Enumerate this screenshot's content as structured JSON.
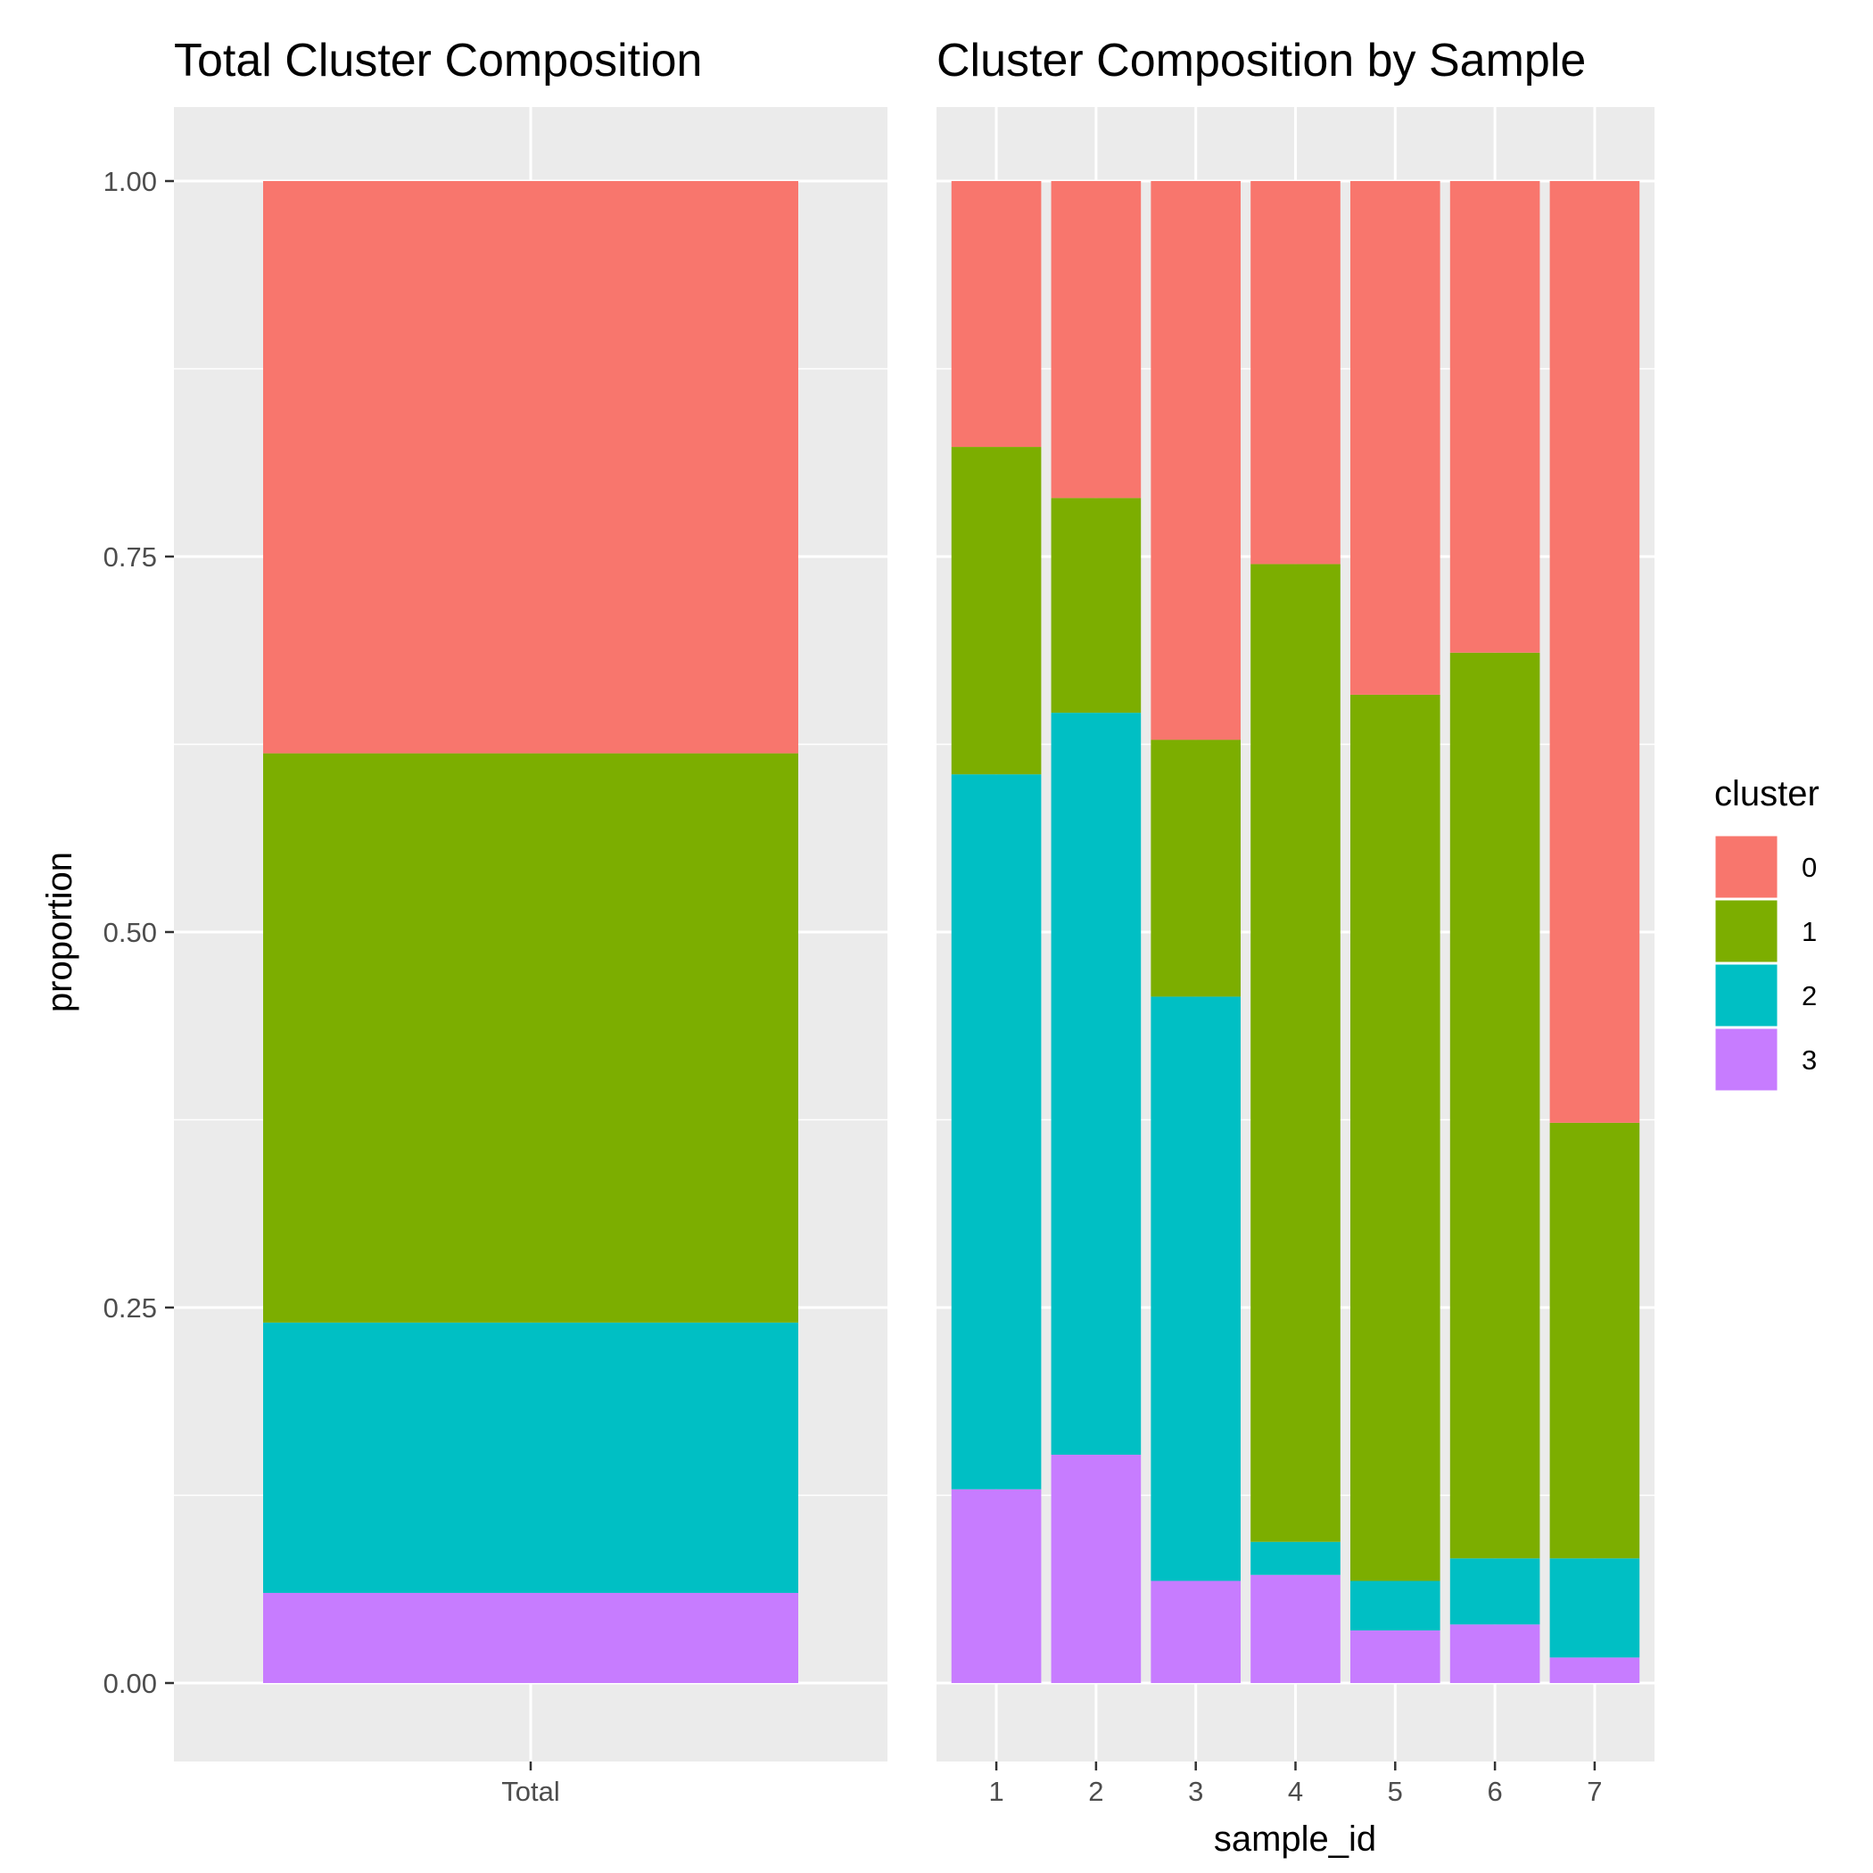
{
  "chart_data": [
    {
      "type": "bar",
      "stacked": true,
      "title": "Total Cluster Composition",
      "xlabel": "",
      "ylabel": "proportion",
      "ylim": [
        0,
        1
      ],
      "yticks": [
        "0.00",
        "0.25",
        "0.50",
        "0.75",
        "1.00"
      ],
      "categories": [
        "Total"
      ],
      "series": [
        {
          "name": "0",
          "values": [
            0.381
          ]
        },
        {
          "name": "1",
          "values": [
            0.379
          ]
        },
        {
          "name": "2",
          "values": [
            0.18
          ]
        },
        {
          "name": "3",
          "values": [
            0.06
          ]
        }
      ],
      "grid": true
    },
    {
      "type": "bar",
      "stacked": true,
      "title": "Cluster Composition by Sample",
      "xlabel": "sample_id",
      "ylabel": "",
      "ylim": [
        0,
        1
      ],
      "categories": [
        "1",
        "2",
        "3",
        "4",
        "5",
        "6",
        "7"
      ],
      "series": [
        {
          "name": "0",
          "values": [
            0.177,
            0.211,
            0.372,
            0.255,
            0.342,
            0.314,
            0.627
          ]
        },
        {
          "name": "1",
          "values": [
            0.218,
            0.143,
            0.171,
            0.651,
            0.59,
            0.603,
            0.29
          ]
        },
        {
          "name": "2",
          "values": [
            0.476,
            0.494,
            0.389,
            0.022,
            0.033,
            0.044,
            0.066
          ]
        },
        {
          "name": "3",
          "values": [
            0.129,
            0.152,
            0.068,
            0.072,
            0.035,
            0.039,
            0.017
          ]
        }
      ],
      "grid": true
    }
  ],
  "legend": {
    "title": "cluster",
    "position": "right",
    "items": [
      "0",
      "1",
      "2",
      "3"
    ]
  },
  "colors": {
    "0": "#F8766D",
    "1": "#7CAE00",
    "2": "#00BFC4",
    "3": "#C77CFF",
    "panel_bg": "#EBEBEB",
    "grid": "#FFFFFF",
    "tick": "#333333",
    "tick_text": "#4D4D4D"
  }
}
